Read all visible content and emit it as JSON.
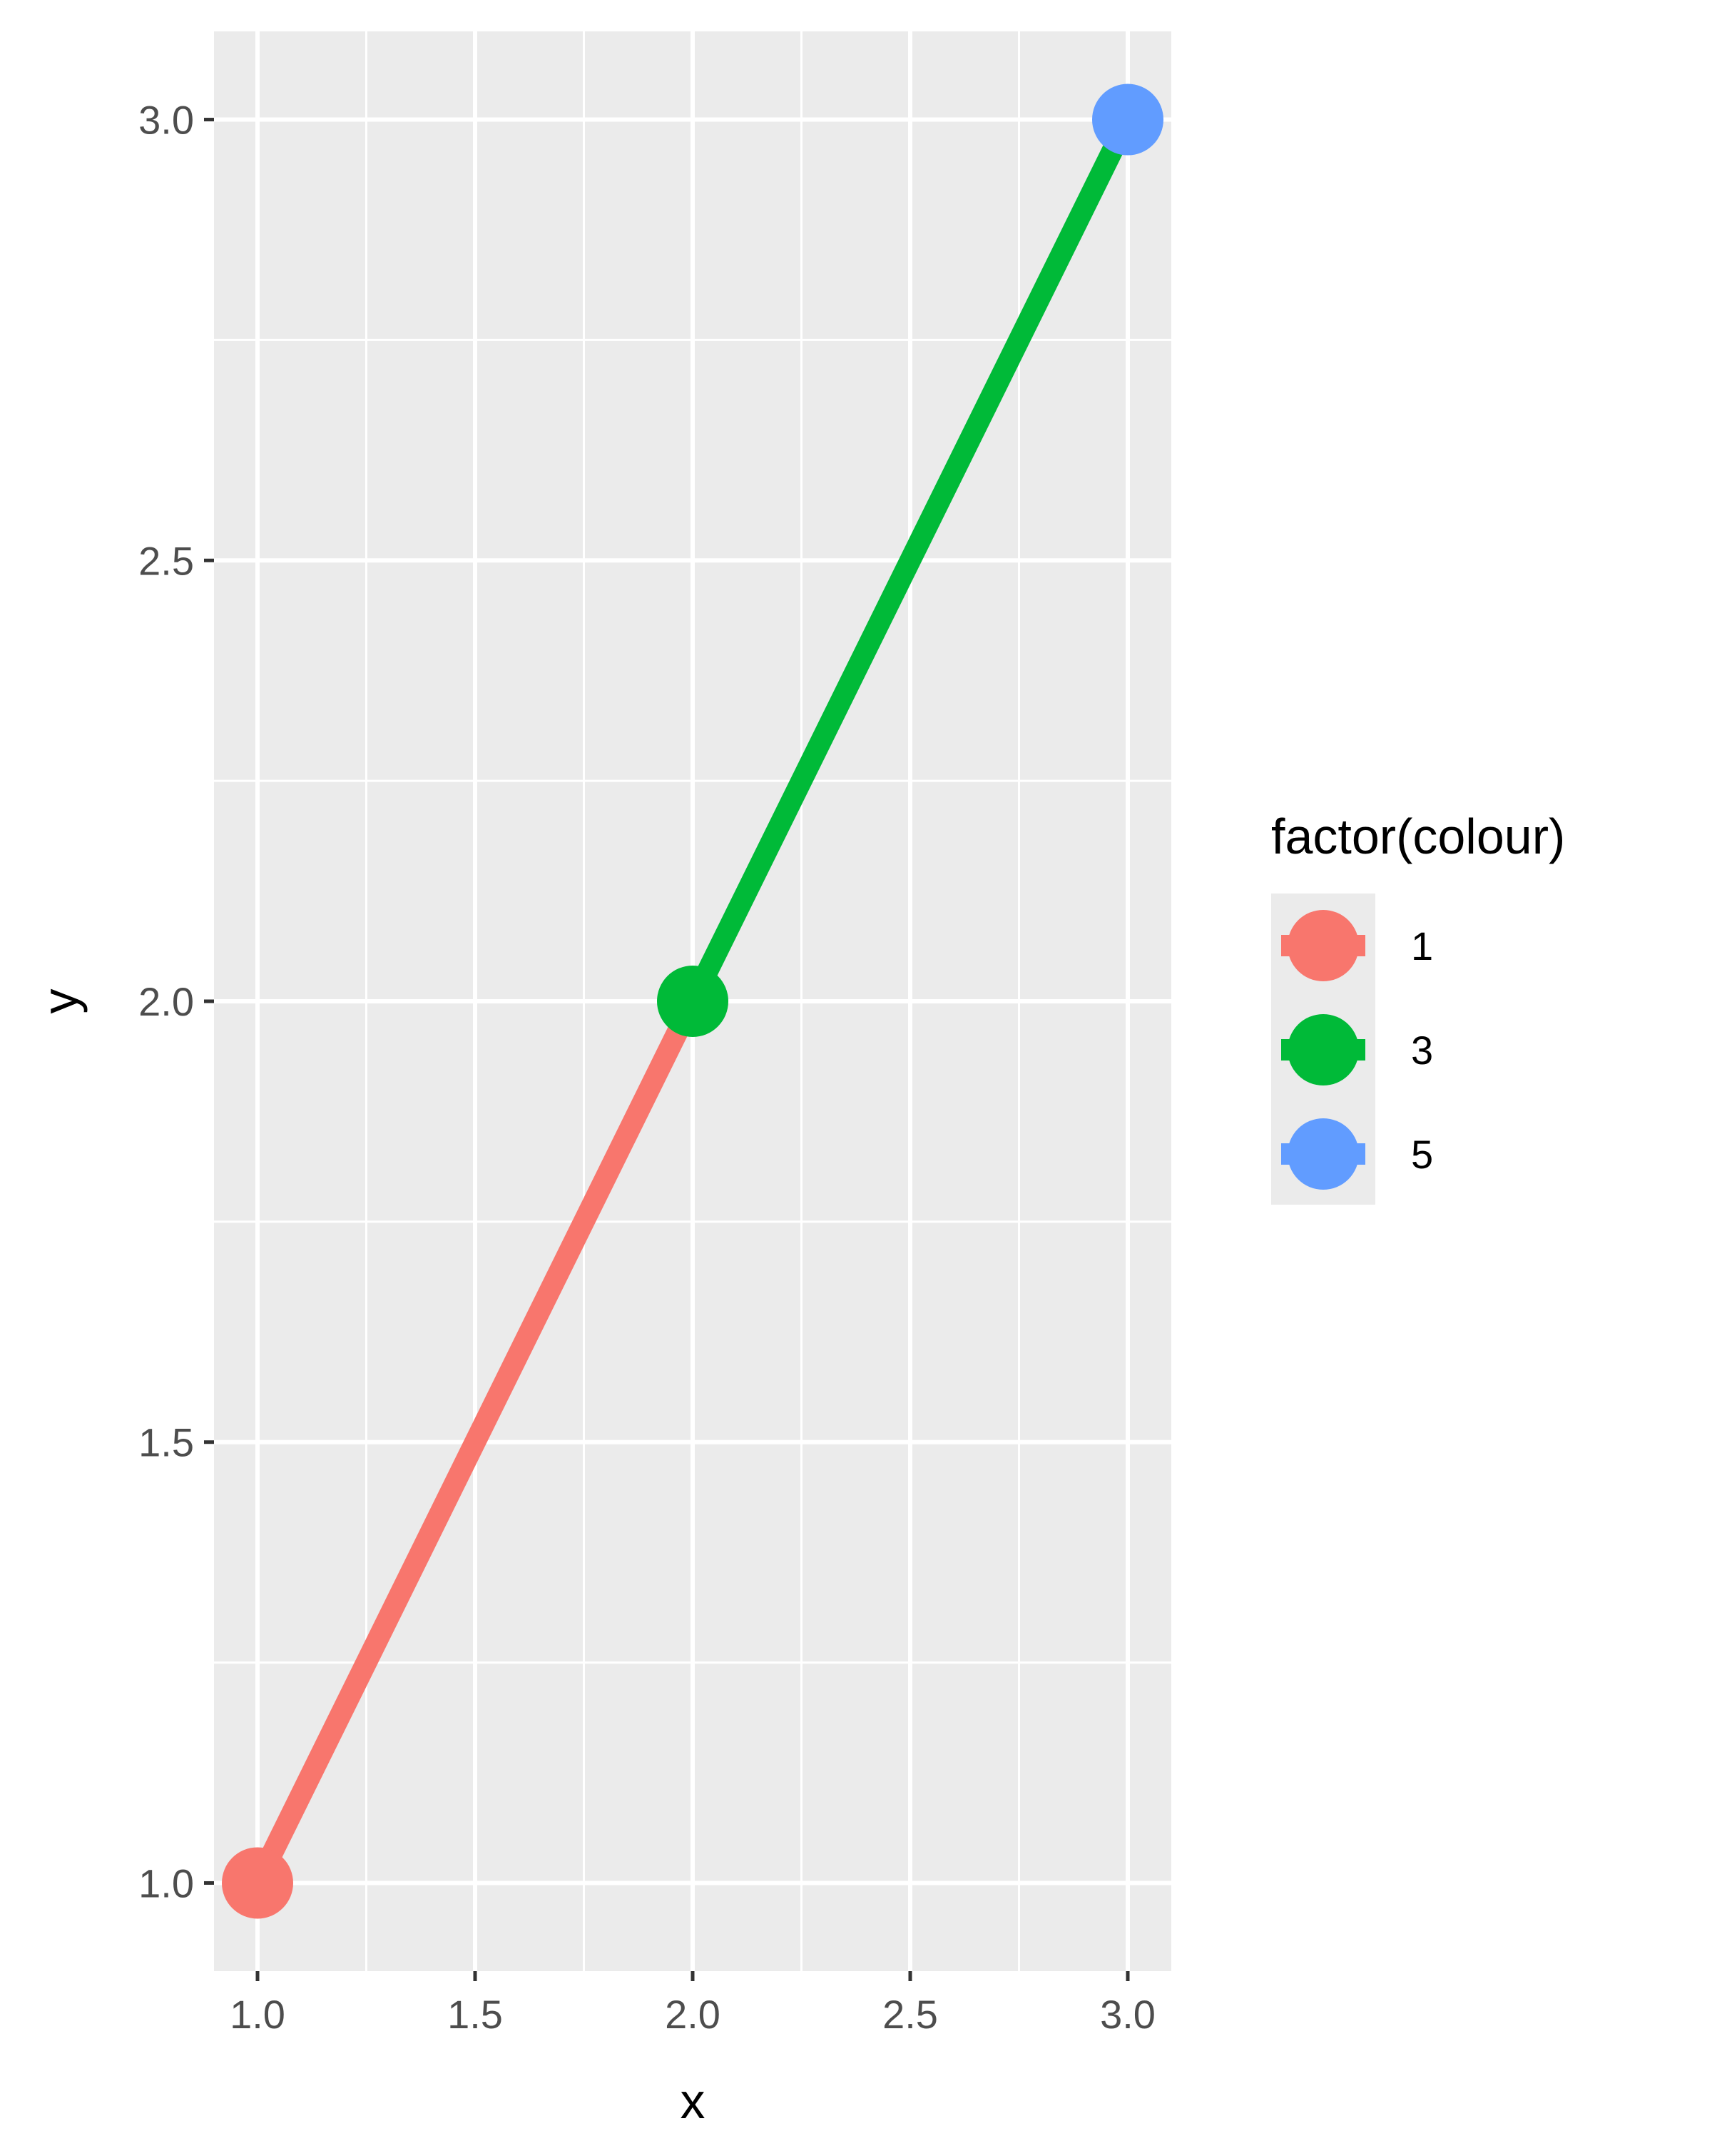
{
  "chart_data": {
    "type": "line",
    "xlabel": "x",
    "ylabel": "y",
    "xlim": [
      0.9,
      3.1
    ],
    "ylim": [
      0.9,
      3.1
    ],
    "x_ticks": [
      1.0,
      1.5,
      2.0,
      2.5,
      3.0
    ],
    "x_tick_labels": [
      "1.0",
      "1.5",
      "2.0",
      "2.5",
      "3.0"
    ],
    "y_ticks": [
      1.0,
      1.5,
      2.0,
      2.5,
      3.0
    ],
    "y_tick_labels": [
      "1.0",
      "1.5",
      "2.0",
      "2.5",
      "3.0"
    ],
    "grid": true,
    "legend_position": "right",
    "legend": {
      "title": "factor(colour)",
      "entries": [
        {
          "label": "1",
          "color": "#F8766D"
        },
        {
          "label": "3",
          "color": "#00BA38"
        },
        {
          "label": "5",
          "color": "#619CFF"
        }
      ]
    },
    "points": [
      {
        "x": 1,
        "y": 1,
        "colour": "1",
        "color": "#F8766D"
      },
      {
        "x": 2,
        "y": 2,
        "colour": "3",
        "color": "#00BA38"
      },
      {
        "x": 3,
        "y": 3,
        "colour": "5",
        "color": "#619CFF"
      }
    ],
    "segments": [
      {
        "x": [
          1,
          2
        ],
        "y": [
          1,
          2
        ],
        "colour": "1",
        "color": "#F8766D"
      },
      {
        "x": [
          2,
          3
        ],
        "y": [
          2,
          3
        ],
        "colour": "3",
        "color": "#00BA38"
      }
    ],
    "panel_background": "#EBEBEB",
    "grid_color": "#FFFFFF"
  }
}
